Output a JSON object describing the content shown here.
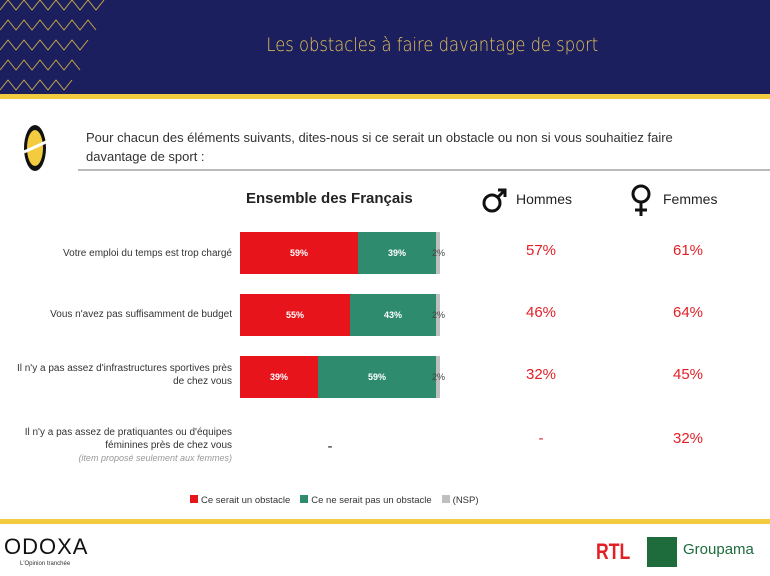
{
  "header": {
    "title": "Les obstacles à faire davantage de sport"
  },
  "question": "Pour chacun des éléments suivants, dites-nous si ce serait un obstacle ou non si vous souhaitiez faire davantage de sport :",
  "columns": {
    "ensemble": "Ensemble des Français",
    "hommes": "Hommes",
    "femmes": "Femmes"
  },
  "chart_data": {
    "type": "bar",
    "stacked": true,
    "orientation": "horizontal",
    "title": "Ensemble des Français",
    "categories": [
      "Votre emploi du temps est trop chargé",
      "Vous n'avez pas suffisamment de budget",
      "Il n'y a pas assez d'infrastructures sportives près de chez vous",
      "Il n'y a pas assez de pratiquantes ou d'équipes féminines près de chez vous"
    ],
    "category_note": "(item proposé seulement aux femmes)",
    "series": [
      {
        "name": "Ce serait un obstacle",
        "color": "#e8141c",
        "values": [
          59,
          55,
          39,
          null
        ]
      },
      {
        "name": "Ce ne serait pas un obstacle",
        "color": "#2e8b6e",
        "values": [
          39,
          43,
          59,
          null
        ]
      },
      {
        "name": "(NSP)",
        "color": "#bfbfbf",
        "values": [
          2,
          2,
          2,
          null
        ]
      }
    ],
    "missing_label": "-",
    "hommes": [
      "57%",
      "46%",
      "32%",
      "-"
    ],
    "femmes": [
      "61%",
      "64%",
      "45%",
      "32%"
    ],
    "xlim": [
      0,
      100
    ],
    "legend": "bottom"
  },
  "footer": {
    "brand": "ODOXA",
    "tagline": "L'Opinion tranchée",
    "partner1": "RTL",
    "partner2": "Groupama"
  }
}
